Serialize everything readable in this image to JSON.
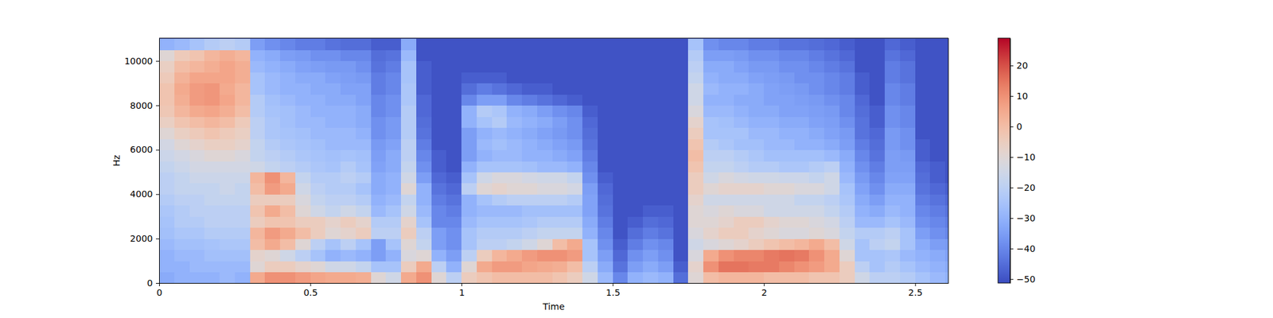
{
  "chart_data": {
    "type": "heatmap",
    "xlabel": "Time",
    "ylabel": "Hz",
    "xlim": [
      0,
      2.61
    ],
    "ylim": [
      0,
      11025
    ],
    "xticks": [
      0,
      0.5,
      1,
      1.5,
      2,
      2.5
    ],
    "yticks": [
      0,
      2000,
      4000,
      6000,
      8000,
      10000
    ],
    "x_bins": [
      0,
      0.05,
      0.1,
      0.15,
      0.2,
      0.25,
      0.3,
      0.35,
      0.4,
      0.45,
      0.5,
      0.55,
      0.6,
      0.65,
      0.7,
      0.75,
      0.8,
      0.85,
      0.9,
      0.95,
      1.0,
      1.05,
      1.1,
      1.15,
      1.2,
      1.25,
      1.3,
      1.35,
      1.4,
      1.45,
      1.5,
      1.55,
      1.6,
      1.65,
      1.7,
      1.75,
      1.8,
      1.85,
      1.9,
      1.95,
      2.0,
      2.05,
      2.1,
      2.15,
      2.2,
      2.25,
      2.3,
      2.35,
      2.4,
      2.45,
      2.5,
      2.55,
      2.6,
      2.65
    ],
    "y_bins": [
      0,
      500,
      1000,
      1500,
      2000,
      2500,
      3000,
      3500,
      4000,
      4500,
      5000,
      5500,
      6000,
      6500,
      7000,
      7500,
      8000,
      8500,
      9000,
      9500,
      10000,
      10500,
      11000,
      11500
    ],
    "cells": [
      [
        -32,
        -30,
        -30,
        -28,
        -26,
        -25,
        -24,
        -22,
        -20,
        -20,
        -18,
        -16,
        -14,
        -10,
        -6,
        -3,
        -2,
        -2,
        -4,
        -6,
        -10,
        -30,
        -50
      ],
      [
        -30,
        -30,
        -28,
        -26,
        -24,
        -22,
        -22,
        -20,
        -18,
        -18,
        -16,
        -14,
        -10,
        -6,
        -2,
        2,
        4,
        5,
        3,
        0,
        -4,
        -28,
        -50
      ],
      [
        -30,
        -28,
        -28,
        -26,
        -24,
        -22,
        -20,
        -20,
        -18,
        -16,
        -14,
        -12,
        -8,
        -4,
        0,
        5,
        8,
        8,
        6,
        2,
        -2,
        -25,
        -50
      ],
      [
        -30,
        -28,
        -26,
        -25,
        -22,
        -20,
        -20,
        -18,
        -18,
        -16,
        -14,
        -10,
        -6,
        -2,
        2,
        6,
        9,
        9,
        6,
        4,
        2,
        -22,
        -50
      ],
      [
        -28,
        -28,
        -26,
        -24,
        -22,
        -20,
        -20,
        -18,
        -16,
        -16,
        -14,
        -10,
        -6,
        -4,
        0,
        4,
        6,
        5,
        6,
        6,
        4,
        -20,
        -50
      ],
      [
        -30,
        -28,
        -26,
        -24,
        -22,
        -20,
        -20,
        -18,
        -18,
        -16,
        -14,
        -12,
        -8,
        -6,
        -4,
        0,
        2,
        2,
        4,
        4,
        2,
        -22,
        -50
      ],
      [
        5,
        -10,
        -8,
        0,
        2,
        -5,
        -2,
        -5,
        0,
        2,
        -15,
        -18,
        -18,
        -20,
        -20,
        -22,
        -22,
        -25,
        -25,
        -28,
        -30,
        -35,
        -50
      ],
      [
        10,
        -5,
        -10,
        5,
        8,
        -2,
        5,
        -5,
        8,
        10,
        -18,
        -20,
        -22,
        -24,
        -24,
        -25,
        -26,
        -28,
        -28,
        -30,
        -32,
        -38,
        -50
      ],
      [
        10,
        -5,
        -15,
        0,
        5,
        -2,
        0,
        -5,
        5,
        2,
        -20,
        -22,
        -24,
        -25,
        -26,
        -26,
        -28,
        -30,
        -30,
        -32,
        -35,
        -40,
        -50
      ],
      [
        8,
        -8,
        -20,
        -10,
        0,
        -5,
        -10,
        -12,
        -15,
        -18,
        -22,
        -24,
        -25,
        -26,
        -28,
        -28,
        -30,
        -30,
        -32,
        -34,
        -36,
        -42,
        -50
      ],
      [
        6,
        -10,
        -25,
        -20,
        -5,
        -5,
        -15,
        -18,
        -20,
        -22,
        -24,
        -25,
        -26,
        -28,
        -28,
        -30,
        -30,
        -32,
        -32,
        -35,
        -38,
        -42,
        -50
      ],
      [
        5,
        -15,
        -30,
        -25,
        -10,
        -8,
        -18,
        -20,
        -22,
        -22,
        -25,
        -26,
        -28,
        -28,
        -30,
        -30,
        -32,
        -32,
        -34,
        -36,
        -38,
        -44,
        -50
      ],
      [
        5,
        -15,
        -28,
        -20,
        -8,
        -5,
        -15,
        -20,
        -22,
        -20,
        -22,
        -25,
        -28,
        -28,
        -30,
        -30,
        -32,
        -34,
        -35,
        -36,
        -40,
        -45,
        -50
      ],
      [
        4,
        -18,
        -30,
        -25,
        -5,
        -8,
        -18,
        -22,
        -25,
        -22,
        -25,
        -26,
        -28,
        -30,
        -32,
        -32,
        -34,
        -34,
        -36,
        -38,
        -40,
        -45,
        -50
      ],
      [
        -10,
        -25,
        -35,
        -35,
        -20,
        -22,
        -28,
        -30,
        -32,
        -32,
        -34,
        -35,
        -36,
        -38,
        -38,
        -40,
        -40,
        -42,
        -42,
        -44,
        -45,
        -48,
        -50
      ],
      [
        -15,
        -25,
        -30,
        -25,
        -20,
        -22,
        -25,
        -28,
        -30,
        -30,
        -32,
        -32,
        -34,
        -36,
        -36,
        -38,
        -38,
        -40,
        -40,
        -42,
        -44,
        -48,
        -50
      ],
      [
        5,
        -5,
        -12,
        -10,
        -5,
        -8,
        -15,
        -18,
        -10,
        -15,
        -18,
        -20,
        -20,
        -22,
        -22,
        -22,
        -24,
        -24,
        -25,
        -25,
        -28,
        -32,
        -50
      ],
      [
        10,
        5,
        -10,
        -18,
        -20,
        -25,
        -28,
        -30,
        -30,
        -35,
        -38,
        -40,
        -42,
        -44,
        -45,
        -46,
        -46,
        -48,
        -48,
        -48,
        -50,
        -50,
        -50
      ],
      [
        -10,
        -20,
        -30,
        -35,
        -35,
        -40,
        -40,
        -42,
        -44,
        -46,
        -48,
        -48,
        -50,
        -50,
        -50,
        -50,
        -50,
        -50,
        -50,
        -50,
        -50,
        -50,
        -50
      ],
      [
        -20,
        -30,
        -35,
        -38,
        -38,
        -40,
        -42,
        -44,
        -46,
        -48,
        -50,
        -50,
        -50,
        -50,
        -50,
        -50,
        -50,
        -50,
        -50,
        -50,
        -50,
        -50,
        -50
      ],
      [
        -5,
        -10,
        -20,
        -25,
        -25,
        -28,
        -30,
        -30,
        -20,
        -25,
        -30,
        -35,
        -35,
        -35,
        -30,
        -30,
        -40,
        -45,
        -48,
        -50,
        -50,
        -50,
        -50
      ],
      [
        -2,
        5,
        -5,
        -20,
        -22,
        -25,
        -28,
        -25,
        -10,
        -15,
        -25,
        -30,
        -28,
        -30,
        -25,
        -22,
        -35,
        -42,
        -48,
        -50,
        -50,
        -50,
        -50
      ],
      [
        0,
        8,
        2,
        -20,
        -22,
        -25,
        -28,
        -22,
        -8,
        -12,
        -25,
        -28,
        -26,
        -28,
        -22,
        -24,
        -35,
        -44,
        -48,
        -50,
        -50,
        -50,
        -50
      ],
      [
        0,
        8,
        5,
        -18,
        -22,
        -25,
        -28,
        -20,
        -10,
        -12,
        -25,
        -28,
        -28,
        -30,
        -28,
        -30,
        -40,
        -46,
        -50,
        -50,
        -50,
        -50,
        -50
      ],
      [
        0,
        6,
        8,
        -15,
        -20,
        -24,
        -26,
        -20,
        -10,
        -14,
        -26,
        -30,
        -30,
        -32,
        -30,
        -32,
        -42,
        -48,
        -50,
        -50,
        -50,
        -50,
        -50
      ],
      [
        0,
        5,
        10,
        -10,
        -18,
        -22,
        -26,
        -20,
        -12,
        -15,
        -28,
        -30,
        -32,
        -34,
        -32,
        -35,
        -44,
        -48,
        -50,
        -50,
        -50,
        -50,
        -50
      ],
      [
        -2,
        4,
        10,
        0,
        -18,
        -22,
        -26,
        -20,
        -12,
        -15,
        -28,
        -32,
        -34,
        -36,
        -35,
        -38,
        -46,
        -50,
        -50,
        -50,
        -50,
        -50,
        -50
      ],
      [
        -5,
        0,
        8,
        5,
        -18,
        -22,
        -26,
        -22,
        -14,
        -18,
        -30,
        -34,
        -36,
        -38,
        -38,
        -40,
        -48,
        -50,
        -50,
        -50,
        -50,
        -50,
        -50
      ],
      [
        -15,
        -20,
        -25,
        -25,
        -30,
        -32,
        -34,
        -34,
        -35,
        -38,
        -40,
        -42,
        -44,
        -45,
        -46,
        -48,
        -50,
        -50,
        -50,
        -50,
        -50,
        -50,
        -50
      ],
      [
        -28,
        -32,
        -35,
        -38,
        -40,
        -42,
        -44,
        -45,
        -46,
        -48,
        -50,
        -50,
        -50,
        -50,
        -50,
        -50,
        -50,
        -50,
        -50,
        -50,
        -50,
        -50,
        -50
      ],
      [
        -40,
        -44,
        -46,
        -48,
        -50,
        -50,
        -50,
        -50,
        -50,
        -50,
        -50,
        -50,
        -50,
        -50,
        -50,
        -50,
        -50,
        -50,
        -50,
        -50,
        -50,
        -50,
        -50
      ],
      [
        -30,
        -35,
        -38,
        -42,
        -45,
        -48,
        -50,
        -50,
        -50,
        -50,
        -50,
        -50,
        -50,
        -50,
        -50,
        -50,
        -50,
        -50,
        -50,
        -50,
        -50,
        -50,
        -50
      ],
      [
        -28,
        -32,
        -35,
        -38,
        -42,
        -45,
        -48,
        -50,
        -50,
        -50,
        -50,
        -50,
        -50,
        -50,
        -50,
        -50,
        -50,
        -50,
        -50,
        -50,
        -50,
        -50,
        -50
      ],
      [
        -30,
        -35,
        -38,
        -40,
        -44,
        -46,
        -48,
        -50,
        -50,
        -50,
        -50,
        -50,
        -50,
        -50,
        -50,
        -50,
        -50,
        -50,
        -50,
        -50,
        -50,
        -50,
        -50
      ],
      [
        -45,
        -48,
        -50,
        -50,
        -50,
        -50,
        -50,
        -50,
        -50,
        -50,
        -50,
        -50,
        -50,
        -50,
        -50,
        -50,
        -50,
        -50,
        -50,
        -50,
        -50,
        -50,
        -50
      ],
      [
        -10,
        -8,
        -12,
        -15,
        -12,
        -10,
        -10,
        -8,
        -5,
        -5,
        -2,
        0,
        -2,
        -5,
        -8,
        -12,
        -15,
        -15,
        -18,
        -20,
        -22,
        -25,
        -50
      ],
      [
        0,
        10,
        5,
        -12,
        -8,
        -10,
        -12,
        -15,
        -10,
        -15,
        -18,
        -20,
        -22,
        -25,
        -25,
        -28,
        -30,
        -28,
        -30,
        -32,
        -35,
        -38,
        -50
      ],
      [
        2,
        15,
        10,
        -10,
        -5,
        -8,
        -10,
        -15,
        -8,
        -12,
        -18,
        -20,
        -24,
        -25,
        -26,
        -28,
        -30,
        -30,
        -32,
        -32,
        -35,
        -40,
        -50
      ],
      [
        2,
        15,
        12,
        -8,
        -5,
        -5,
        -12,
        -15,
        -8,
        -14,
        -20,
        -22,
        -26,
        -25,
        -28,
        -30,
        -32,
        -30,
        -32,
        -34,
        -36,
        -40,
        -50
      ],
      [
        2,
        14,
        12,
        -5,
        -8,
        -5,
        -12,
        -15,
        -8,
        -15,
        -22,
        -24,
        -26,
        -28,
        -30,
        -32,
        -32,
        -32,
        -34,
        -36,
        -38,
        -42,
        -50
      ],
      [
        0,
        14,
        14,
        -2,
        -10,
        -8,
        -15,
        -15,
        -10,
        -15,
        -22,
        -26,
        -28,
        -28,
        -30,
        -32,
        -34,
        -34,
        -35,
        -36,
        -38,
        -42,
        -50
      ],
      [
        0,
        12,
        15,
        0,
        -12,
        -10,
        -15,
        -15,
        -10,
        -16,
        -24,
        -26,
        -28,
        -30,
        -32,
        -34,
        -34,
        -35,
        -36,
        -38,
        -40,
        -44,
        -50
      ],
      [
        0,
        10,
        14,
        2,
        -12,
        -10,
        -15,
        -18,
        -12,
        -16,
        -24,
        -26,
        -30,
        -30,
        -32,
        -34,
        -35,
        -36,
        -38,
        -38,
        -40,
        -44,
        -50
      ],
      [
        -2,
        8,
        10,
        5,
        -10,
        -12,
        -15,
        -18,
        -12,
        -18,
        -22,
        -26,
        -30,
        -32,
        -34,
        -35,
        -36,
        -38,
        -38,
        -40,
        -42,
        -45,
        -50
      ],
      [
        -2,
        5,
        5,
        0,
        -12,
        -14,
        -18,
        -20,
        -15,
        -15,
        -20,
        -28,
        -32,
        -34,
        -35,
        -36,
        -38,
        -40,
        -40,
        -42,
        -44,
        -46,
        -50
      ],
      [
        -5,
        -5,
        -10,
        -15,
        -18,
        -20,
        -22,
        -24,
        -25,
        -28,
        -30,
        -32,
        -35,
        -36,
        -38,
        -40,
        -40,
        -42,
        -42,
        -44,
        -46,
        -48,
        -50
      ],
      [
        -15,
        -20,
        -25,
        -25,
        -22,
        -28,
        -30,
        -32,
        -34,
        -36,
        -38,
        -40,
        -42,
        -44,
        -44,
        -45,
        -46,
        -48,
        -48,
        -50,
        -50,
        -50,
        -50
      ],
      [
        -20,
        -25,
        -25,
        -20,
        -22,
        -28,
        -32,
        -35,
        -38,
        -40,
        -42,
        -44,
        -45,
        -46,
        -48,
        -48,
        -50,
        -50,
        -50,
        -50,
        -50,
        -50,
        -50
      ],
      [
        -20,
        -22,
        -24,
        -18,
        -20,
        -25,
        -28,
        -30,
        -32,
        -34,
        -35,
        -35,
        -36,
        -36,
        -38,
        -38,
        -40,
        -40,
        -42,
        -42,
        -44,
        -46,
        -50
      ],
      [
        -22,
        -25,
        -28,
        -25,
        -25,
        -28,
        -30,
        -30,
        -32,
        -34,
        -35,
        -36,
        -38,
        -38,
        -40,
        -40,
        -42,
        -42,
        -44,
        -44,
        -46,
        -48,
        -50
      ],
      [
        -25,
        -28,
        -30,
        -32,
        -35,
        -38,
        -40,
        -42,
        -44,
        -45,
        -46,
        -48,
        -48,
        -50,
        -50,
        -50,
        -50,
        -50,
        -50,
        -50,
        -50,
        -50,
        -50
      ],
      [
        -28,
        -30,
        -32,
        -35,
        -38,
        -40,
        -42,
        -44,
        -46,
        -48,
        -48,
        -50,
        -50,
        -50,
        -50,
        -50,
        -50,
        -50,
        -50,
        -50,
        -50,
        -50,
        -50
      ],
      [
        -30,
        -32,
        -34,
        -36,
        -40,
        -42,
        -44,
        -46,
        -48,
        -50,
        -50,
        -50,
        -50,
        -50,
        -50,
        -50,
        -50,
        -50,
        -50,
        -50,
        -50,
        -50,
        -50
      ]
    ],
    "colorbar": {
      "range": [
        -51.3,
        29
      ],
      "ticks": [
        {
          "value": -50,
          "label": "−50"
        },
        {
          "value": -40,
          "label": "−40"
        },
        {
          "value": -30,
          "label": "−30"
        },
        {
          "value": -20,
          "label": "−20"
        },
        {
          "value": -10,
          "label": "−10"
        },
        0,
        10,
        20
      ]
    }
  }
}
